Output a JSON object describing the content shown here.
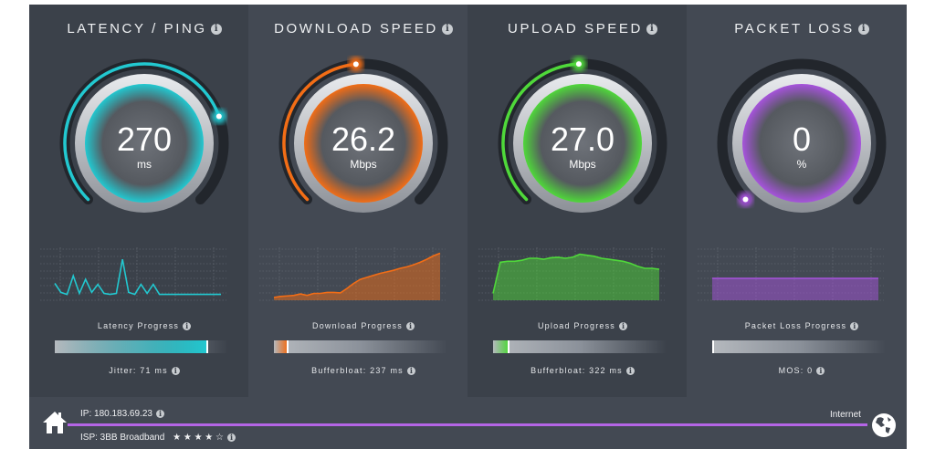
{
  "colors": {
    "latency": "#22c8d0",
    "download": "#f26d16",
    "upload": "#4fd83a",
    "packet_loss": "#a653dc",
    "connection_line": "#b565e6"
  },
  "panels": [
    {
      "title": "LATENCY / PING",
      "value": "270",
      "unit": "ms",
      "gauge_fraction": 0.76,
      "progress_label": "Latency Progress",
      "progress_fraction": 0.88,
      "sub_label": "Jitter: 71 ms",
      "color_key": "latency",
      "chart": {
        "type": "line",
        "fill": false,
        "values": [
          30,
          12,
          8,
          45,
          10,
          38,
          12,
          28,
          10,
          8,
          10,
          78,
          12,
          8,
          28,
          10,
          28,
          8,
          8,
          8,
          8,
          8,
          8,
          8,
          8,
          8,
          8,
          8
        ]
      }
    },
    {
      "title": "DOWNLOAD SPEED",
      "value": "26.2",
      "unit": "Mbps",
      "gauge_fraction": 0.48,
      "progress_label": "Download Progress",
      "progress_fraction": 0.08,
      "sub_label": "Bufferbloat: 237 ms",
      "color_key": "download",
      "chart": {
        "type": "area",
        "fill": true,
        "values": [
          2,
          4,
          5,
          6,
          9,
          6,
          10,
          10,
          12,
          12,
          11,
          20,
          30,
          38,
          42,
          46,
          50,
          53,
          56,
          60,
          63,
          67,
          72,
          78,
          85,
          90
        ]
      }
    },
    {
      "title": "UPLOAD SPEED",
      "value": "27.0",
      "unit": "Mbps",
      "gauge_fraction": 0.49,
      "progress_label": "Upload Progress",
      "progress_fraction": 0.09,
      "sub_label": "Bufferbloat: 322 ms",
      "color_key": "upload",
      "chart": {
        "type": "area",
        "fill": true,
        "values": [
          10,
          72,
          74,
          74,
          76,
          80,
          80,
          78,
          81,
          82,
          80,
          82,
          88,
          86,
          84,
          80,
          78,
          76,
          74,
          70,
          64,
          60,
          60,
          58
        ]
      }
    },
    {
      "title": "PACKET LOSS",
      "value": "0",
      "unit": "%",
      "gauge_fraction": 0.0,
      "progress_label": "Packet Loss Progress",
      "progress_fraction": 0.0,
      "sub_label": "MOS: 0",
      "color_key": "packet_loss",
      "chart": {
        "type": "area",
        "fill": true,
        "values": [
          40,
          40,
          40,
          40,
          40,
          40,
          40,
          40,
          40,
          40
        ]
      }
    }
  ],
  "footer": {
    "ip": "IP: 180.183.69.23",
    "isp": "ISP: 3BB Broadband",
    "isp_rating": 4,
    "isp_rating_max": 5,
    "stars": "★ ★ ★ ★ ☆",
    "internet_label": "Internet",
    "home_icon": "home-icon",
    "globe_icon": "globe-icon"
  }
}
